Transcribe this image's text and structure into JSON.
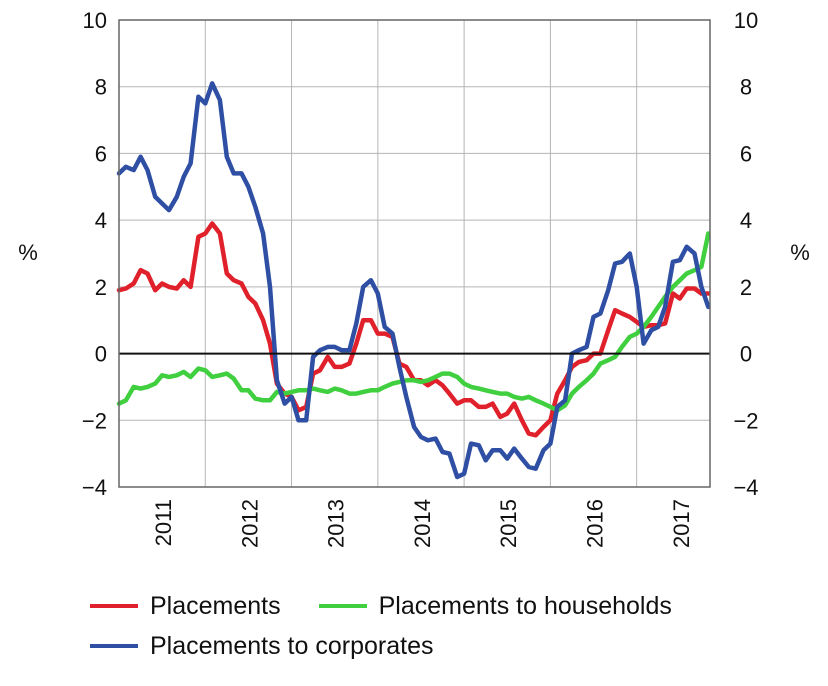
{
  "chart_data": {
    "type": "line",
    "title": "",
    "xlabel": "",
    "ylabel": "%",
    "ylabel_right": "%",
    "ylim": [
      -4,
      10
    ],
    "yticks": [
      -4,
      -2,
      0,
      2,
      4,
      6,
      8,
      10
    ],
    "ytick_labels": [
      "−4",
      "−2",
      "0",
      "2",
      "4",
      "6",
      "8",
      "10"
    ],
    "xlim": [
      2010.5,
      2017.35
    ],
    "year_labels": [
      "2011",
      "2012",
      "2013",
      "2014",
      "2015",
      "2016",
      "2017"
    ],
    "grid": true,
    "legend_position": "bottom",
    "series": [
      {
        "name": "Placements",
        "color": "#e0202a",
        "x": [
          2010.5,
          2010.58,
          2010.67,
          2010.75,
          2010.83,
          2010.92,
          2011.0,
          2011.08,
          2011.17,
          2011.25,
          2011.33,
          2011.42,
          2011.5,
          2011.58,
          2011.67,
          2011.75,
          2011.83,
          2011.92,
          2012.0,
          2012.08,
          2012.17,
          2012.25,
          2012.33,
          2012.42,
          2012.5,
          2012.58,
          2012.67,
          2012.75,
          2012.83,
          2012.92,
          2013.0,
          2013.08,
          2013.17,
          2013.25,
          2013.33,
          2013.42,
          2013.5,
          2013.58,
          2013.67,
          2013.75,
          2013.83,
          2013.92,
          2014.0,
          2014.08,
          2014.17,
          2014.25,
          2014.33,
          2014.42,
          2014.5,
          2014.58,
          2014.67,
          2014.75,
          2014.83,
          2014.92,
          2015.0,
          2015.08,
          2015.17,
          2015.25,
          2015.33,
          2015.42,
          2015.5,
          2015.58,
          2015.67,
          2015.75,
          2015.83,
          2015.92,
          2016.0,
          2016.08,
          2016.17,
          2016.25,
          2016.33,
          2016.42,
          2016.5,
          2016.58,
          2016.67,
          2016.75,
          2016.83,
          2016.92,
          2017.0,
          2017.08,
          2017.17,
          2017.25,
          2017.33
        ],
        "values": [
          1.9,
          1.95,
          2.1,
          2.5,
          2.4,
          1.9,
          2.1,
          2.0,
          1.95,
          2.2,
          2.0,
          3.5,
          3.6,
          3.9,
          3.6,
          2.4,
          2.2,
          2.1,
          1.7,
          1.5,
          1.0,
          0.3,
          -0.9,
          -1.2,
          -1.3,
          -1.7,
          -1.6,
          -0.6,
          -0.5,
          -0.1,
          -0.4,
          -0.4,
          -0.3,
          0.3,
          1.0,
          1.0,
          0.6,
          0.6,
          0.5,
          -0.3,
          -0.4,
          -0.8,
          -0.8,
          -0.95,
          -0.8,
          -0.95,
          -1.2,
          -1.5,
          -1.4,
          -1.4,
          -1.6,
          -1.6,
          -1.5,
          -1.9,
          -1.8,
          -1.5,
          -2.0,
          -2.4,
          -2.45,
          -2.2,
          -2.0,
          -1.2,
          -0.8,
          -0.4,
          -0.25,
          -0.2,
          0.0,
          0.0,
          0.7,
          1.3,
          1.2,
          1.1,
          0.95,
          0.8,
          0.85,
          0.85,
          0.9,
          1.8,
          1.65,
          1.95,
          1.95,
          1.8,
          1.8
        ]
      },
      {
        "name": "Placements to households",
        "color": "#3fcf3f",
        "x": [
          2010.5,
          2010.58,
          2010.67,
          2010.75,
          2010.83,
          2010.92,
          2011.0,
          2011.08,
          2011.17,
          2011.25,
          2011.33,
          2011.42,
          2011.5,
          2011.58,
          2011.67,
          2011.75,
          2011.83,
          2011.92,
          2012.0,
          2012.08,
          2012.17,
          2012.25,
          2012.33,
          2012.42,
          2012.5,
          2012.58,
          2012.67,
          2012.75,
          2012.83,
          2012.92,
          2013.0,
          2013.08,
          2013.17,
          2013.25,
          2013.33,
          2013.42,
          2013.5,
          2013.58,
          2013.67,
          2013.75,
          2013.83,
          2013.92,
          2014.0,
          2014.08,
          2014.17,
          2014.25,
          2014.33,
          2014.42,
          2014.5,
          2014.58,
          2014.67,
          2014.75,
          2014.83,
          2014.92,
          2015.0,
          2015.08,
          2015.17,
          2015.25,
          2015.33,
          2015.42,
          2015.5,
          2015.58,
          2015.67,
          2015.75,
          2015.83,
          2015.92,
          2016.0,
          2016.08,
          2016.17,
          2016.25,
          2016.33,
          2016.42,
          2016.5,
          2016.58,
          2016.67,
          2016.75,
          2016.83,
          2016.92,
          2017.0,
          2017.08,
          2017.17,
          2017.25,
          2017.33
        ],
        "values": [
          -1.5,
          -1.4,
          -1.0,
          -1.05,
          -1.0,
          -0.9,
          -0.65,
          -0.7,
          -0.65,
          -0.55,
          -0.7,
          -0.45,
          -0.5,
          -0.7,
          -0.65,
          -0.6,
          -0.75,
          -1.1,
          -1.1,
          -1.35,
          -1.4,
          -1.4,
          -1.15,
          -1.2,
          -1.15,
          -1.1,
          -1.1,
          -1.05,
          -1.1,
          -1.15,
          -1.05,
          -1.1,
          -1.2,
          -1.2,
          -1.15,
          -1.1,
          -1.1,
          -1.0,
          -0.9,
          -0.85,
          -0.8,
          -0.8,
          -0.85,
          -0.8,
          -0.7,
          -0.6,
          -0.6,
          -0.7,
          -0.9,
          -1.0,
          -1.05,
          -1.1,
          -1.15,
          -1.2,
          -1.2,
          -1.3,
          -1.35,
          -1.3,
          -1.4,
          -1.5,
          -1.6,
          -1.7,
          -1.55,
          -1.2,
          -1.0,
          -0.8,
          -0.6,
          -0.3,
          -0.2,
          -0.1,
          0.2,
          0.5,
          0.6,
          0.8,
          1.1,
          1.4,
          1.7,
          2.0,
          2.2,
          2.4,
          2.5,
          2.6,
          3.6
        ]
      },
      {
        "name": "Placements to corporates",
        "color": "#2e4fa3",
        "x": [
          2010.5,
          2010.58,
          2010.67,
          2010.75,
          2010.83,
          2010.92,
          2011.0,
          2011.08,
          2011.17,
          2011.25,
          2011.33,
          2011.42,
          2011.5,
          2011.58,
          2011.67,
          2011.75,
          2011.83,
          2011.92,
          2012.0,
          2012.08,
          2012.17,
          2012.25,
          2012.33,
          2012.42,
          2012.5,
          2012.58,
          2012.67,
          2012.75,
          2012.83,
          2012.92,
          2013.0,
          2013.08,
          2013.17,
          2013.25,
          2013.33,
          2013.42,
          2013.5,
          2013.58,
          2013.67,
          2013.75,
          2013.83,
          2013.92,
          2014.0,
          2014.08,
          2014.17,
          2014.25,
          2014.33,
          2014.42,
          2014.5,
          2014.58,
          2014.67,
          2014.75,
          2014.83,
          2014.92,
          2015.0,
          2015.08,
          2015.17,
          2015.25,
          2015.33,
          2015.42,
          2015.5,
          2015.58,
          2015.67,
          2015.75,
          2015.83,
          2015.92,
          2016.0,
          2016.08,
          2016.17,
          2016.25,
          2016.33,
          2016.42,
          2016.5,
          2016.58,
          2016.67,
          2016.75,
          2016.83,
          2016.92,
          2017.0,
          2017.08,
          2017.17,
          2017.25,
          2017.33
        ],
        "values": [
          5.4,
          5.6,
          5.5,
          5.9,
          5.5,
          4.7,
          4.5,
          4.3,
          4.7,
          5.3,
          5.7,
          7.7,
          7.5,
          8.1,
          7.6,
          5.9,
          5.4,
          5.4,
          5.0,
          4.4,
          3.6,
          2.0,
          -0.8,
          -1.5,
          -1.3,
          -2.0,
          -2.0,
          -0.1,
          0.1,
          0.2,
          0.2,
          0.1,
          0.1,
          0.9,
          2.0,
          2.2,
          1.8,
          0.8,
          0.6,
          -0.4,
          -1.3,
          -2.2,
          -2.5,
          -2.6,
          -2.55,
          -2.95,
          -3.0,
          -3.7,
          -3.6,
          -2.7,
          -2.75,
          -3.2,
          -2.9,
          -2.9,
          -3.15,
          -2.85,
          -3.15,
          -3.4,
          -3.45,
          -2.9,
          -2.7,
          -1.6,
          -1.4,
          0.0,
          0.1,
          0.2,
          1.1,
          1.2,
          1.9,
          2.7,
          2.75,
          3.0,
          2.0,
          0.3,
          0.7,
          0.8,
          1.4,
          2.75,
          2.8,
          3.2,
          3.0,
          2.0,
          1.4
        ]
      }
    ]
  }
}
